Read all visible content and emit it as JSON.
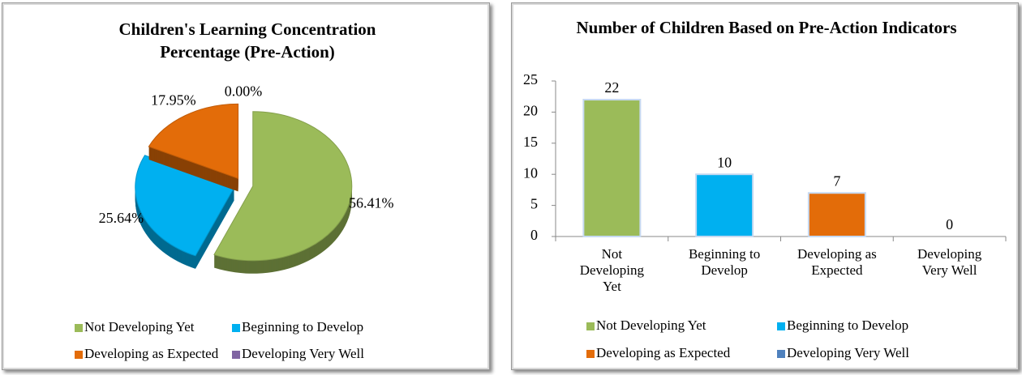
{
  "chart_data": [
    {
      "type": "pie",
      "title": "Children's Learning Concentration Percentage (Pre-Action)",
      "categories": [
        "Not Developing Yet",
        "Beginning to Develop",
        "Developing as Expected",
        "Developing Very Well"
      ],
      "values": [
        56.41,
        25.64,
        17.95,
        0
      ],
      "value_labels": [
        "56.41%",
        "25.64%",
        "17.95%",
        "0.00%"
      ],
      "colors": [
        "#9bbb59",
        "#00b0f0",
        "#e36c09",
        "#8064a2"
      ],
      "legend": "bottom"
    },
    {
      "type": "bar",
      "title": "Number of Children Based on Pre-Action Indicators",
      "categories": [
        "Not Developing Yet",
        "Beginning to Develop",
        "Developing as Expected",
        "Developing Very Well"
      ],
      "values": [
        22,
        10,
        7,
        0
      ],
      "colors": [
        "#9bbb59",
        "#00b0f0",
        "#e36c09",
        "#4f81bd"
      ],
      "ylim": [
        0,
        25
      ],
      "yticks": [
        0,
        5,
        10,
        15,
        20,
        25
      ],
      "legend": "bottom"
    }
  ]
}
